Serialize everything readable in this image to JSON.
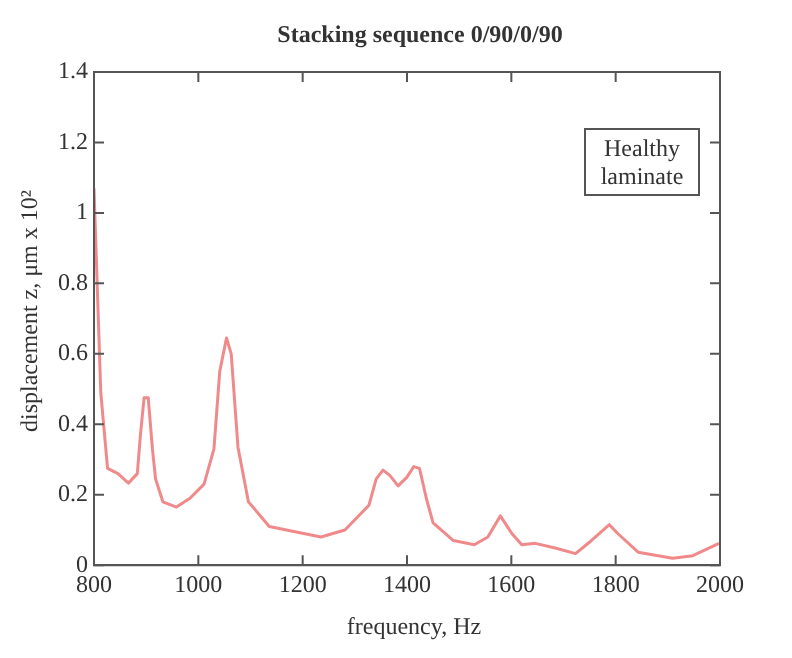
{
  "chart_data": {
    "type": "line",
    "title": "Stacking sequence 0/90/0/90",
    "xlabel": "frequency, Hz",
    "ylabel": "displacement z, μm x 10²",
    "annotations": [
      "Healthy laminate"
    ],
    "x": [
      800,
      813,
      826,
      846,
      866,
      883,
      889,
      896,
      904,
      912,
      918,
      932,
      958,
      984,
      1011,
      1030,
      1041,
      1054,
      1063,
      1076,
      1096,
      1136,
      1202,
      1235,
      1281,
      1327,
      1341,
      1354,
      1367,
      1383,
      1400,
      1413,
      1424,
      1437,
      1450,
      1489,
      1529,
      1555,
      1579,
      1601,
      1620,
      1646,
      1686,
      1723,
      1752,
      1788,
      1804,
      1843,
      1909,
      1948,
      1998
    ],
    "series": [
      {
        "color": "#f08a8a",
        "values": [
          1.07,
          0.49,
          0.275,
          0.26,
          0.233,
          0.26,
          0.37,
          0.475,
          0.475,
          0.33,
          0.245,
          0.18,
          0.165,
          0.19,
          0.23,
          0.33,
          0.55,
          0.645,
          0.6,
          0.335,
          0.18,
          0.11,
          0.09,
          0.08,
          0.1,
          0.17,
          0.245,
          0.27,
          0.255,
          0.225,
          0.25,
          0.28,
          0.275,
          0.19,
          0.12,
          0.07,
          0.058,
          0.08,
          0.14,
          0.09,
          0.058,
          0.062,
          0.048,
          0.033,
          0.068,
          0.115,
          0.09,
          0.037,
          0.02,
          0.027,
          0.062
        ]
      }
    ],
    "xlim": [
      800,
      2000
    ],
    "xticks": [
      800,
      1000,
      1200,
      1400,
      1600,
      1800,
      2000
    ],
    "ylim": [
      0,
      1.4
    ],
    "yticks": [
      0,
      0.2,
      0.4,
      0.6,
      0.8,
      1.0,
      1.2,
      1.4
    ],
    "grid": false,
    "legend": false,
    "marker": "none",
    "line_style": "solid"
  }
}
